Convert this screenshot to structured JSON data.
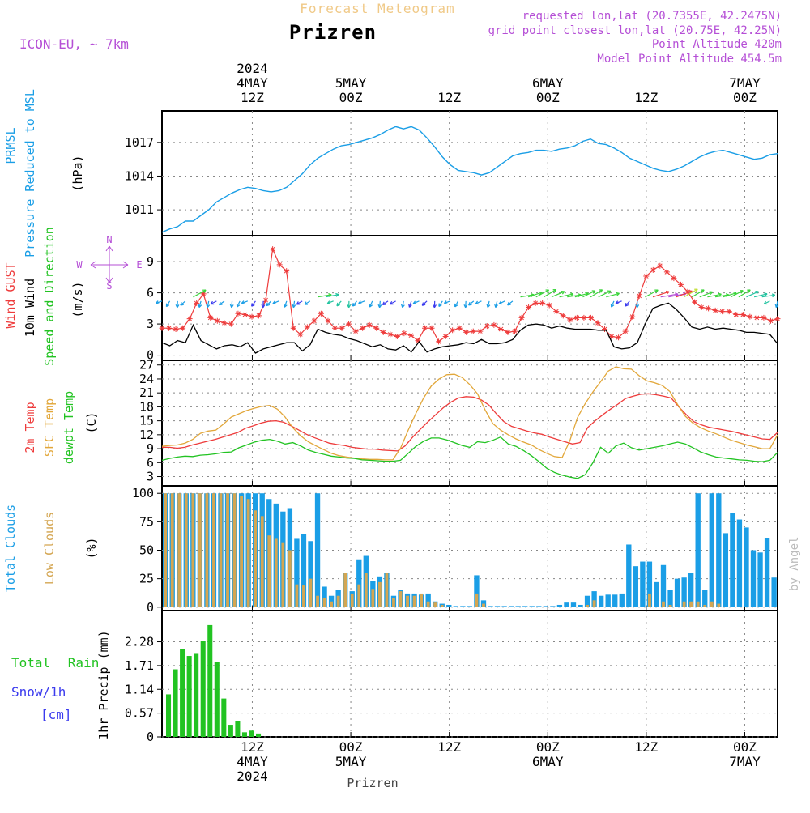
{
  "header": {
    "supertitle": "Forecast Meteogram",
    "title": "Prizren",
    "model": "ICON-EU, ~ 7km",
    "info_lines": [
      "requested lon,lat (20.7355E, 42.2475N)",
      "grid point closest lon,lat (20.75E, 42.25N)",
      "Point Altitude 420m",
      "Model Point Altitude 454.5m"
    ],
    "footer": "Prizren",
    "credit": "by Angel"
  },
  "colors": {
    "pressure": "#1a9ee6",
    "gust": "#ee3b3b",
    "wind": "#000000",
    "temp2m": "#ee3b3b",
    "sfc": "#e2a73a",
    "dewpt": "#22c322",
    "cloud_total": "#1a9ee6",
    "cloud_low": "#d4a652",
    "rain": "#22c322",
    "snow": "#3b3bee",
    "compass": "#b54fd6",
    "grid": "#888888"
  },
  "time_axis": {
    "start_hour": 1,
    "end_hour": 76,
    "top_ticks": [
      {
        "hour": 12,
        "lines": [
          "2024",
          "4MAY",
          "12Z"
        ]
      },
      {
        "hour": 24,
        "lines": [
          "5MAY",
          "00Z"
        ]
      },
      {
        "hour": 36,
        "lines": [
          "12Z"
        ]
      },
      {
        "hour": 48,
        "lines": [
          "6MAY",
          "00Z"
        ]
      },
      {
        "hour": 60,
        "lines": [
          "12Z"
        ]
      },
      {
        "hour": 72,
        "lines": [
          "7MAY",
          "00Z"
        ]
      }
    ],
    "bottom_ticks": [
      {
        "hour": 12,
        "lines": [
          "12Z",
          "4MAY",
          "2024"
        ]
      },
      {
        "hour": 24,
        "lines": [
          "00Z",
          "5MAY"
        ]
      },
      {
        "hour": 36,
        "lines": [
          "12Z"
        ]
      },
      {
        "hour": 48,
        "lines": [
          "00Z",
          "6MAY"
        ]
      },
      {
        "hour": 60,
        "lines": [
          "12Z"
        ]
      },
      {
        "hour": 72,
        "lines": [
          "00Z",
          "7MAY"
        ]
      }
    ]
  },
  "chart_data": [
    {
      "type": "line",
      "panel": "pressure",
      "side_labels": [
        "PRMSL",
        "Pressure Reduced to MSL"
      ],
      "unit": "(hPa)",
      "ylim": [
        1008.7,
        1019.8
      ],
      "yticks": [
        1011,
        1014,
        1017
      ],
      "series": [
        {
          "key": "prmsl",
          "values": [
            1009.0,
            1009.3,
            1009.5,
            1010.0,
            1010.0,
            1010.5,
            1011.0,
            1011.7,
            1012.1,
            1012.5,
            1012.8,
            1013.0,
            1012.9,
            1012.7,
            1012.6,
            1012.7,
            1013.0,
            1013.6,
            1014.2,
            1015.0,
            1015.6,
            1016.0,
            1016.4,
            1016.7,
            1016.8,
            1017.0,
            1017.2,
            1017.4,
            1017.7,
            1018.1,
            1018.4,
            1018.2,
            1018.4,
            1018.1,
            1017.4,
            1016.6,
            1015.7,
            1015.0,
            1014.5,
            1014.4,
            1014.3,
            1014.1,
            1014.3,
            1014.8,
            1015.3,
            1015.8,
            1016.0,
            1016.1,
            1016.3,
            1016.3,
            1016.2,
            1016.4,
            1016.5,
            1016.7,
            1017.1,
            1017.3,
            1016.9,
            1016.8,
            1016.5,
            1016.1,
            1015.6,
            1015.3,
            1015.0,
            1014.7,
            1014.5,
            1014.4,
            1014.6,
            1014.9,
            1015.3,
            1015.7,
            1016.0,
            1016.2,
            1016.3,
            1016.1,
            1015.9,
            1015.7,
            1015.5,
            1015.6,
            1015.9,
            1016.0
          ]
        }
      ]
    },
    {
      "type": "line",
      "panel": "wind",
      "side_labels": [
        "Wind GUST",
        "10m Wind",
        "Speed and Direction"
      ],
      "unit": "(m/s)",
      "compass": {
        "n": "N",
        "s": "S",
        "e": "E",
        "w": "W"
      },
      "ylim": [
        -0.5,
        11.5
      ],
      "yticks": [
        0,
        3,
        6,
        9
      ],
      "series": [
        {
          "key": "gust",
          "marker": "star",
          "values": [
            2.6,
            2.6,
            2.5,
            2.6,
            3.5,
            5.0,
            5.9,
            3.6,
            3.3,
            3.1,
            3.0,
            4.0,
            3.9,
            3.7,
            3.8,
            5.3,
            10.2,
            8.7,
            8.1,
            2.6,
            2.0,
            2.7,
            3.3,
            4.0,
            3.3,
            2.6,
            2.6,
            3.0,
            2.3,
            2.6,
            2.9,
            2.6,
            2.2,
            2.0,
            1.8,
            2.1,
            1.9,
            1.4,
            2.6,
            2.6,
            1.3,
            1.8,
            2.4,
            2.6,
            2.2,
            2.3,
            2.3,
            2.8,
            2.9,
            2.5,
            2.2,
            2.3,
            3.6,
            4.6,
            5.0,
            5.0,
            4.8,
            4.2,
            3.8,
            3.4,
            3.6,
            3.6,
            3.6,
            3.1,
            2.5,
            1.8,
            1.7,
            2.3,
            3.7,
            5.7,
            7.6,
            8.2,
            8.6,
            8.0,
            7.4,
            6.8,
            6.1,
            5.1,
            4.6,
            4.5,
            4.3,
            4.2,
            4.2,
            3.9,
            3.9,
            3.7,
            3.6,
            3.6,
            3.3,
            3.5
          ]
        },
        {
          "key": "wind10m",
          "values": [
            1.2,
            0.9,
            1.4,
            1.2,
            2.9,
            1.4,
            1.0,
            0.6,
            0.9,
            1.0,
            0.8,
            1.2,
            0.2,
            0.6,
            0.8,
            1.0,
            1.2,
            1.2,
            0.4,
            1.0,
            2.5,
            2.2,
            2.0,
            1.9,
            1.6,
            1.4,
            1.1,
            0.8,
            1.0,
            0.6,
            0.5,
            0.9,
            0.3,
            1.3,
            0.3,
            0.6,
            0.8,
            0.9,
            1.0,
            1.2,
            1.1,
            1.5,
            1.1,
            1.1,
            1.2,
            1.5,
            2.4,
            2.9,
            3.0,
            2.9,
            2.6,
            2.8,
            2.6,
            2.5,
            2.5,
            2.5,
            2.4,
            2.4,
            0.8,
            0.6,
            0.7,
            1.2,
            3.0,
            4.5,
            4.8,
            5.0,
            4.4,
            3.6,
            2.7,
            2.5,
            2.7,
            2.5,
            2.6,
            2.5,
            2.4,
            2.2,
            2.2,
            2.1,
            2.0,
            1.1
          ]
        }
      ],
      "legend_extra": "10m wind direction arrows"
    },
    {
      "type": "line",
      "panel": "temperature",
      "side_labels": [
        "2m Temp",
        "SFC Temp",
        "dewpt Temp"
      ],
      "unit": "(C)",
      "ylim": [
        1,
        28
      ],
      "yticks": [
        3,
        6,
        9,
        12,
        15,
        18,
        21,
        24,
        27
      ],
      "series": [
        {
          "key": "t2m",
          "values": [
            9.3,
            9.3,
            9.1,
            9.3,
            9.8,
            10.2,
            10.6,
            11.0,
            11.5,
            12.0,
            12.5,
            13.4,
            13.9,
            14.5,
            14.9,
            15.0,
            14.7,
            13.9,
            13.0,
            12.1,
            11.4,
            10.8,
            10.2,
            9.9,
            9.7,
            9.3,
            9.1,
            8.9,
            8.9,
            8.7,
            8.6,
            8.5,
            9.6,
            11.5,
            13.2,
            14.8,
            16.3,
            17.8,
            19.0,
            19.9,
            20.2,
            20.1,
            19.5,
            18.4,
            16.5,
            14.8,
            13.8,
            13.3,
            12.8,
            12.4,
            12.1,
            11.5,
            11.0,
            10.5,
            10.0,
            10.3,
            13.5,
            15.0,
            16.3,
            17.5,
            18.6,
            19.8,
            20.3,
            20.7,
            20.8,
            20.6,
            20.3,
            19.9,
            18.0,
            16.3,
            14.8,
            14.1,
            13.6,
            13.3,
            13.0,
            12.7,
            12.3,
            11.9,
            11.5,
            11.1,
            11.0,
            12.5
          ]
        },
        {
          "key": "sfc",
          "values": [
            9.5,
            9.7,
            9.8,
            10.2,
            11.0,
            12.3,
            12.8,
            13.0,
            14.3,
            15.8,
            16.5,
            17.2,
            17.7,
            18.1,
            18.3,
            17.5,
            15.8,
            13.5,
            11.8,
            10.5,
            9.6,
            8.8,
            8.0,
            7.5,
            7.2,
            7.0,
            6.8,
            6.7,
            6.7,
            6.6,
            6.6,
            9.1,
            13.0,
            16.6,
            19.9,
            22.5,
            24.0,
            24.9,
            25.0,
            24.3,
            22.8,
            20.8,
            17.3,
            14.4,
            13.0,
            12.0,
            11.1,
            10.4,
            9.8,
            8.8,
            8.0,
            7.3,
            7.1,
            10.7,
            15.7,
            18.7,
            21.2,
            23.4,
            25.7,
            26.6,
            26.2,
            26.1,
            24.7,
            23.6,
            23.2,
            22.6,
            21.3,
            18.5,
            16.0,
            14.5,
            13.5,
            12.8,
            12.2,
            11.5,
            10.8,
            10.3,
            9.8,
            9.4,
            9.0,
            9.0,
            12.0
          ]
        },
        {
          "key": "dewpt",
          "values": [
            6.5,
            6.9,
            7.2,
            7.4,
            7.3,
            7.6,
            7.7,
            7.9,
            8.2,
            8.3,
            9.2,
            9.8,
            10.4,
            10.8,
            11.0,
            10.6,
            10.0,
            10.3,
            9.6,
            8.7,
            8.2,
            7.8,
            7.4,
            7.2,
            7.0,
            6.9,
            6.6,
            6.5,
            6.4,
            6.3,
            6.3,
            6.5,
            8.0,
            9.5,
            10.6,
            11.3,
            11.3,
            10.9,
            10.3,
            9.7,
            9.3,
            10.5,
            10.3,
            10.8,
            11.5,
            10.0,
            9.5,
            8.6,
            7.5,
            6.2,
            4.8,
            3.9,
            3.3,
            2.9,
            2.6,
            3.4,
            6.0,
            9.3,
            8.0,
            9.6,
            10.2,
            9.2,
            8.7,
            9.0,
            9.3,
            9.6,
            10.0,
            10.4,
            10.0,
            9.2,
            8.3,
            7.7,
            7.2,
            7.0,
            6.8,
            6.6,
            6.5,
            6.3,
            6.2,
            6.5,
            8.2
          ]
        }
      ]
    },
    {
      "type": "bar",
      "panel": "clouds",
      "side_labels": [
        "Total Clouds",
        "Low Clouds"
      ],
      "unit": "(%)",
      "ylim": [
        -3,
        103
      ],
      "yticks": [
        0,
        25,
        50,
        75,
        100
      ],
      "series": [
        {
          "key": "total",
          "values": [
            100,
            100,
            100,
            100,
            100,
            100,
            100,
            100,
            100,
            100,
            100,
            100,
            100,
            100,
            100,
            95,
            91,
            84,
            87,
            60,
            64,
            58,
            100,
            18,
            10,
            15,
            30,
            14,
            42,
            45,
            23,
            27,
            30,
            10,
            15,
            12,
            12,
            11,
            12,
            5,
            3,
            2,
            1,
            1,
            1,
            28,
            6,
            1,
            1,
            1,
            1,
            1,
            1,
            1,
            1,
            1,
            1,
            2,
            4,
            4,
            2,
            10,
            14,
            10,
            11,
            11,
            12,
            55,
            36,
            40,
            40,
            22,
            37,
            15,
            25,
            26,
            30,
            100,
            15,
            100,
            100,
            65,
            83,
            77,
            70,
            50,
            48,
            61,
            26
          ]
        },
        {
          "key": "low",
          "values": [
            100,
            100,
            100,
            100,
            100,
            100,
            100,
            100,
            100,
            100,
            100,
            98,
            95,
            85,
            80,
            63,
            60,
            57,
            50,
            20,
            19,
            25,
            10,
            8,
            5,
            10,
            30,
            12,
            20,
            30,
            16,
            22,
            30,
            8,
            14,
            10,
            10,
            12,
            5,
            4,
            2,
            0,
            0,
            0,
            0,
            12,
            3,
            0,
            0,
            0,
            0,
            0,
            0,
            0,
            0,
            0,
            0,
            0,
            0,
            0,
            0,
            2,
            6,
            0,
            0,
            0,
            0,
            0,
            0,
            0,
            12,
            0,
            5,
            2,
            0,
            5,
            5,
            5,
            2,
            5,
            3,
            0,
            0,
            0,
            0,
            0,
            0,
            0,
            0,
            0
          ]
        }
      ]
    },
    {
      "type": "bar",
      "panel": "precip",
      "side_labels": [
        "Total Rain",
        "Snow/1h",
        "[cm]"
      ],
      "unit": "1hr Precip (mm)",
      "ylim": [
        0,
        2.95
      ],
      "yticks": [
        0,
        0.57,
        1.14,
        1.71,
        2.28
      ],
      "ytick_labels": [
        "0",
        "0.57",
        "1.14",
        "1.71",
        "2.28"
      ],
      "series": [
        {
          "key": "rain",
          "values": [
            1.02,
            1.62,
            2.1,
            1.94,
            1.99,
            2.3,
            2.68,
            1.8,
            0.92,
            0.29,
            0.37,
            0.11,
            0.15,
            0.08,
            0,
            0,
            0,
            0,
            0
          ]
        }
      ]
    }
  ]
}
